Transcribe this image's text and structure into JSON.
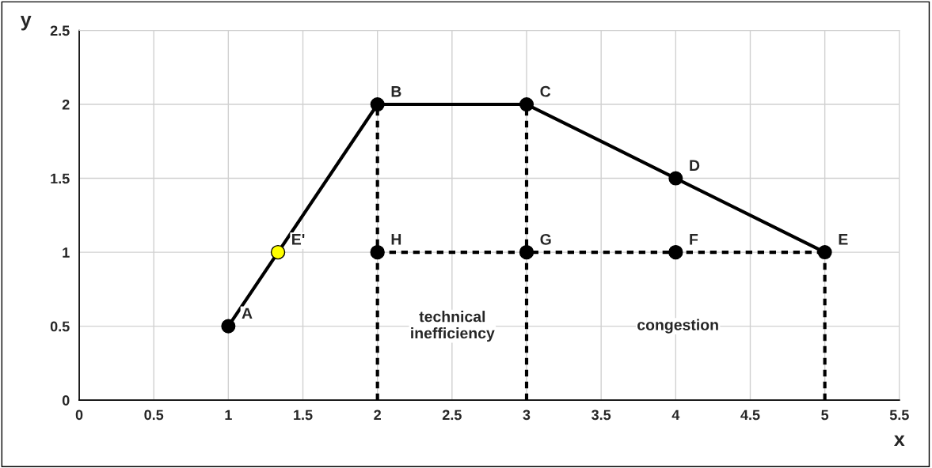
{
  "chart_data": {
    "type": "line",
    "xlabel": "x",
    "ylabel": "y",
    "xlim": [
      0,
      5.5
    ],
    "xticks": [
      0,
      0.5,
      1,
      1.5,
      2,
      2.5,
      3,
      3.5,
      4,
      4.5,
      5,
      5.5
    ],
    "ylim": [
      0,
      2.5
    ],
    "yticks": [
      0,
      0.5,
      1,
      1.5,
      2,
      2.5
    ],
    "grid": true,
    "legend": false,
    "series": [
      {
        "color": "#000000",
        "marker": "circle",
        "line_style": "solid",
        "x": [
          1,
          2,
          3,
          4,
          5
        ],
        "values": [
          0.5,
          2,
          2,
          1.5,
          1
        ]
      },
      {
        "color": "#000000",
        "marker": "none",
        "line_style": "dashed",
        "x": [
          2,
          5
        ],
        "values": [
          1,
          1
        ]
      },
      {
        "color": "#000000",
        "marker": "none",
        "line_style": "dashed",
        "x": [
          2,
          2
        ],
        "values": [
          0,
          2
        ]
      },
      {
        "color": "#000000",
        "marker": "none",
        "line_style": "dashed",
        "x": [
          3,
          3
        ],
        "values": [
          0,
          2
        ]
      },
      {
        "color": "#000000",
        "marker": "none",
        "line_style": "dashed",
        "x": [
          5,
          5
        ],
        "values": [
          0,
          1
        ]
      },
      {
        "type": "scatter",
        "color": "#000000",
        "marker": "circle",
        "x": [
          2,
          3,
          4
        ],
        "values": [
          1,
          1,
          1
        ]
      },
      {
        "type": "scatter",
        "color": "#ffff00",
        "marker": "circle",
        "x": [
          1.333
        ],
        "values": [
          1
        ]
      }
    ],
    "annotations": [
      {
        "text": "A",
        "x": 1,
        "y": 0.5
      },
      {
        "text": "B",
        "x": 2,
        "y": 2
      },
      {
        "text": "C",
        "x": 3,
        "y": 2
      },
      {
        "text": "D",
        "x": 4,
        "y": 1.5
      },
      {
        "text": "E",
        "x": 5,
        "y": 1
      },
      {
        "text": "E'",
        "x": 1.333,
        "y": 1
      },
      {
        "text": "F",
        "x": 4,
        "y": 1
      },
      {
        "text": "G",
        "x": 3,
        "y": 1
      },
      {
        "text": "H",
        "x": 2,
        "y": 1
      },
      "technical\ninefficiency",
      "congestion"
    ]
  }
}
